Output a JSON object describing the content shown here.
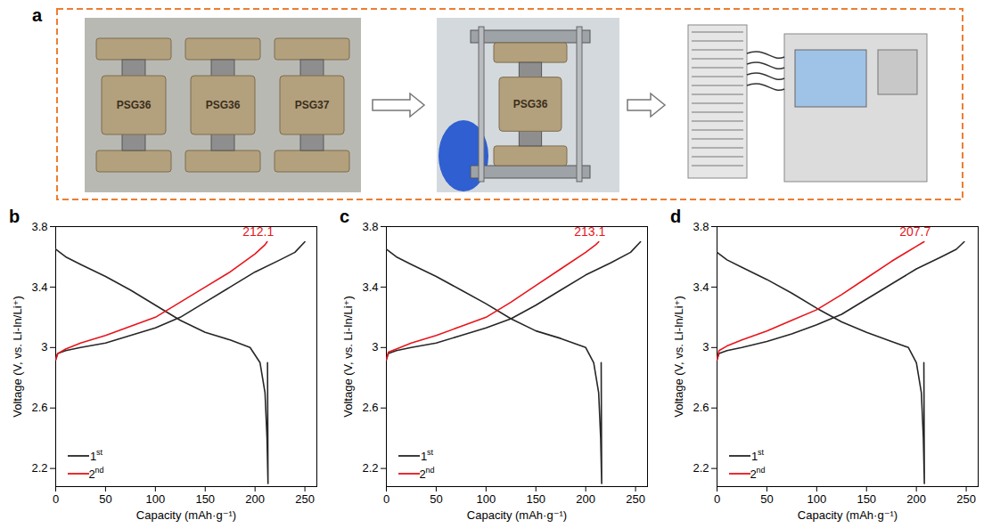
{
  "panel_a": {
    "label": "a",
    "cells": [
      "PSG36",
      "PSG36",
      "PSG37"
    ],
    "pressed_cell": "PSG36"
  },
  "chart_data": [
    {
      "panel": "b",
      "type": "line",
      "x_label": "Capacity (mAh·g⁻¹)",
      "y_label": "Voltage (V, vs. Li-In/Li⁺)",
      "xlim": [
        0,
        262
      ],
      "ylim": [
        2.08,
        3.8
      ],
      "xticks": [
        0,
        50,
        100,
        150,
        200,
        250
      ],
      "yticks": [
        2.2,
        2.6,
        3,
        3.4,
        3.8
      ],
      "legend": "lower left",
      "series": [
        {
          "name": "1st",
          "color": "#262626",
          "x": [
            0,
            2,
            10,
            25,
            50,
            75,
            100,
            125,
            150,
            175,
            200,
            225,
            240,
            250,
            null,
            0,
            10,
            25,
            50,
            75,
            100,
            125,
            150,
            175,
            195,
            205,
            210,
            212,
            213,
            212.5
          ],
          "values": [
            2.92,
            2.96,
            2.98,
            3.0,
            3.03,
            3.08,
            3.13,
            3.2,
            3.3,
            3.4,
            3.5,
            3.58,
            3.63,
            3.7,
            null,
            3.65,
            3.6,
            3.55,
            3.47,
            3.38,
            3.28,
            3.18,
            3.1,
            3.05,
            3.0,
            2.9,
            2.7,
            2.4,
            2.1,
            2.9
          ]
        },
        {
          "name": "2nd",
          "color": "#e8141b",
          "x": [
            0,
            2,
            10,
            25,
            50,
            75,
            100,
            125,
            150,
            175,
            200,
            210,
            212.1
          ],
          "values": [
            2.92,
            2.96,
            2.99,
            3.03,
            3.08,
            3.14,
            3.2,
            3.3,
            3.4,
            3.5,
            3.62,
            3.68,
            3.7
          ]
        }
      ],
      "annotations": [
        {
          "text": "212.1",
          "series": "2nd"
        }
      ]
    },
    {
      "panel": "c",
      "type": "line",
      "x_label": "Capacity (mAh·g⁻¹)",
      "y_label": "Voltage (V, vs. Li-In/Li⁺)",
      "xlim": [
        0,
        262
      ],
      "ylim": [
        2.08,
        3.8
      ],
      "xticks": [
        0,
        50,
        100,
        150,
        200,
        250
      ],
      "yticks": [
        2.2,
        2.6,
        3,
        3.4,
        3.8
      ],
      "legend": "lower left",
      "series": [
        {
          "name": "1st",
          "color": "#262626",
          "x": [
            0,
            2,
            10,
            25,
            50,
            75,
            100,
            125,
            150,
            175,
            200,
            225,
            245,
            255,
            null,
            0,
            10,
            25,
            50,
            75,
            100,
            125,
            150,
            175,
            200,
            208,
            213,
            215,
            216,
            215.5
          ],
          "values": [
            2.92,
            2.96,
            2.98,
            3.0,
            3.03,
            3.08,
            3.13,
            3.19,
            3.28,
            3.38,
            3.48,
            3.56,
            3.63,
            3.7,
            null,
            3.65,
            3.6,
            3.55,
            3.47,
            3.38,
            3.29,
            3.19,
            3.11,
            3.06,
            3.0,
            2.9,
            2.7,
            2.4,
            2.1,
            2.9
          ]
        },
        {
          "name": "2nd",
          "color": "#e8141b",
          "x": [
            0,
            2,
            10,
            25,
            50,
            75,
            100,
            125,
            150,
            175,
            200,
            210,
            213.1
          ],
          "values": [
            2.92,
            2.97,
            2.99,
            3.03,
            3.08,
            3.14,
            3.2,
            3.3,
            3.41,
            3.52,
            3.63,
            3.68,
            3.7
          ]
        }
      ],
      "annotations": [
        {
          "text": "213.1",
          "series": "2nd"
        }
      ]
    },
    {
      "panel": "d",
      "type": "line",
      "x_label": "Capacity (mAh·g⁻¹)",
      "y_label": "Voltage (V, vs. Li-In/Li⁺)",
      "xlim": [
        0,
        262
      ],
      "ylim": [
        2.08,
        3.8
      ],
      "xticks": [
        0,
        50,
        100,
        150,
        200,
        250
      ],
      "yticks": [
        2.2,
        2.6,
        3,
        3.4,
        3.8
      ],
      "legend": "lower left",
      "series": [
        {
          "name": "1st",
          "color": "#262626",
          "x": [
            0,
            2,
            10,
            25,
            50,
            75,
            100,
            125,
            150,
            175,
            200,
            225,
            240,
            248,
            null,
            0,
            10,
            25,
            50,
            75,
            100,
            125,
            150,
            175,
            192,
            200,
            205,
            207,
            208,
            207.5
          ],
          "values": [
            2.92,
            2.96,
            2.98,
            3.0,
            3.04,
            3.09,
            3.15,
            3.22,
            3.32,
            3.42,
            3.52,
            3.6,
            3.65,
            3.7,
            null,
            3.63,
            3.58,
            3.53,
            3.45,
            3.36,
            3.26,
            3.17,
            3.1,
            3.04,
            3.0,
            2.9,
            2.7,
            2.4,
            2.1,
            2.9
          ]
        },
        {
          "name": "2nd",
          "color": "#e8141b",
          "x": [
            0,
            2,
            10,
            25,
            50,
            75,
            100,
            125,
            150,
            175,
            200,
            207.7
          ],
          "values": [
            2.92,
            2.98,
            3.01,
            3.05,
            3.11,
            3.18,
            3.25,
            3.35,
            3.46,
            3.57,
            3.67,
            3.7
          ]
        }
      ],
      "annotations": [
        {
          "text": "207.7",
          "series": "2nd"
        }
      ]
    }
  ]
}
